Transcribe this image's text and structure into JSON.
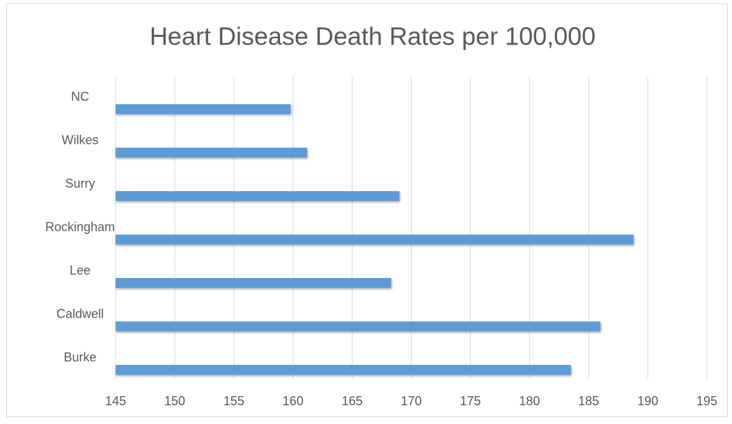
{
  "chart_data": {
    "type": "bar",
    "orientation": "horizontal",
    "title": "Heart Disease Death Rates per 100,000",
    "categories": [
      "NC",
      "Wilkes",
      "Surry",
      "Rockingham",
      "Lee",
      "Caldwell",
      "Burke"
    ],
    "values": [
      159.8,
      161.2,
      169.0,
      188.8,
      168.3,
      186.0,
      183.5
    ],
    "color": "#5b9bd5",
    "xlim": [
      145,
      195
    ],
    "xticks": [
      145,
      150,
      155,
      160,
      165,
      170,
      175,
      180,
      185,
      190,
      195
    ],
    "grid": true
  }
}
